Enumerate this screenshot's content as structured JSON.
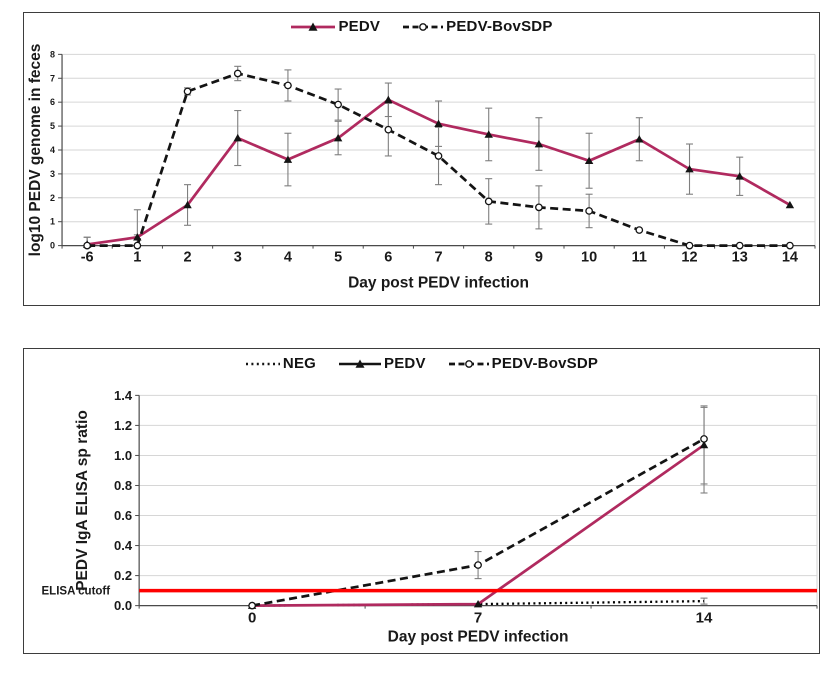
{
  "colors": {
    "pedv_pink": "#b02a5f",
    "series_black": "#141414",
    "error_gray": "#7f7f7f",
    "cutoff_red": "#fe0000",
    "grid_gray": "#d6d6d6",
    "axis_gray": "#4a4a4a",
    "panel_border": "#3d3d3d"
  },
  "chart_data": [
    {
      "type": "line",
      "title": "",
      "xlabel": "Day post PEDV infection",
      "ylabel": "log10 PEDV genome in feces",
      "categories": [
        "-6",
        "1",
        "2",
        "3",
        "4",
        "5",
        "6",
        "7",
        "8",
        "9",
        "10",
        "11",
        "12",
        "13",
        "14"
      ],
      "ylim": [
        0,
        8
      ],
      "ytick_step": 1,
      "ytick_labels": [
        "0",
        "1",
        "2",
        "3",
        "4",
        "5",
        "6",
        "7",
        "8"
      ],
      "grid": true,
      "legend_position": "top",
      "series": [
        {
          "name": "PEDV",
          "style": "solid",
          "color": "#b02a5f",
          "marker": "triangle",
          "marker_color": "#141414",
          "values": [
            0.05,
            0.35,
            1.7,
            4.5,
            3.6,
            4.5,
            6.1,
            5.1,
            4.65,
            4.25,
            3.55,
            4.45,
            3.2,
            2.9,
            1.7
          ],
          "errors": [
            [
              0,
              0.3
            ],
            [
              0.35,
              1.15
            ],
            0.85,
            1.15,
            1.1,
            0.7,
            0.7,
            0.95,
            1.1,
            1.1,
            1.15,
            0.9,
            1.05,
            0.8,
            0
          ]
        },
        {
          "name": "PEDV-BovSDP",
          "style": "dashed",
          "color": "#141414",
          "marker": "circle-open",
          "values": [
            0,
            0,
            6.45,
            7.2,
            6.7,
            5.9,
            4.85,
            3.75,
            1.85,
            1.6,
            1.45,
            0.65,
            0,
            0,
            0
          ],
          "errors": [
            [
              0,
              0.35
            ],
            [
              0,
              0.45
            ],
            0.15,
            0.3,
            0.65,
            0.65,
            1.1,
            1.2,
            0.95,
            0.9,
            0.7,
            0,
            0,
            0,
            0
          ]
        }
      ]
    },
    {
      "type": "line",
      "title": "",
      "xlabel": "Day post PEDV infection",
      "ylabel": "PEDV IgA ELISA sp ratio",
      "categories": [
        "0",
        "7",
        "14"
      ],
      "ylim": [
        0,
        1.4
      ],
      "ytick_step": 0.2,
      "ytick_labels": [
        "0.0",
        "0.2",
        "0.4",
        "0.6",
        "0.8",
        "1.0",
        "1.2",
        "1.4"
      ],
      "grid": true,
      "legend_position": "top",
      "cutoff": {
        "label": "ELISA cutoff",
        "value": 0.1,
        "color": "#fe0000"
      },
      "series": [
        {
          "name": "NEG",
          "style": "dotted",
          "color": "#000000",
          "marker": "none",
          "values": [
            0,
            0.01,
            0.03
          ],
          "errors": [
            0,
            0,
            0.02
          ]
        },
        {
          "name": "PEDV",
          "style": "solid",
          "color": "#b02a5f",
          "marker": "triangle",
          "marker_color": "#141414",
          "values": [
            0,
            0.01,
            1.07
          ],
          "errors": [
            0,
            0,
            [
              0.26,
              0.26
            ]
          ]
        },
        {
          "name": "PEDV-BovSDP",
          "style": "dashed",
          "color": "#141414",
          "marker": "circle-open",
          "values": [
            0,
            0.27,
            1.11
          ],
          "errors": [
            0,
            0.09,
            [
              0.36,
              0.21
            ]
          ]
        }
      ]
    }
  ]
}
